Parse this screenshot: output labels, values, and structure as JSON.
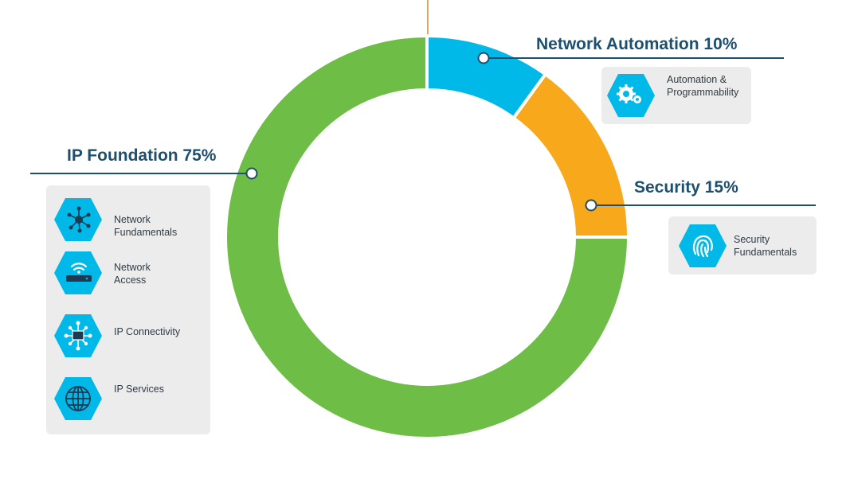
{
  "chart_data": {
    "type": "pie",
    "style": "donut",
    "slices": [
      {
        "label": "Network Automation 10%",
        "value": 10,
        "color": "#00b9e8"
      },
      {
        "label": "Security 15%",
        "value": 15,
        "color": "#f8a81b"
      },
      {
        "label": "IP Foundation 75%",
        "value": 75,
        "color": "#6dbd46"
      }
    ]
  },
  "colors": {
    "label_text": "#1d4f6e",
    "leader_line": "#1d4f6e",
    "icon_hex": "#00b9e8",
    "panel_bg": "#ececec",
    "top_marker": "#d98b2b"
  },
  "panels": {
    "automation": {
      "items": [
        {
          "icon": "gears-icon",
          "lines": [
            "Automation &",
            "Programmability"
          ]
        }
      ]
    },
    "security": {
      "items": [
        {
          "icon": "fingerprint-icon",
          "lines": [
            "Security",
            "Fundamentals"
          ]
        }
      ]
    },
    "foundation": {
      "items": [
        {
          "icon": "network-nodes-icon",
          "lines": [
            "Network",
            "Fundamentals"
          ]
        },
        {
          "icon": "wifi-router-icon",
          "lines": [
            "Network",
            "Access"
          ]
        },
        {
          "icon": "connectivity-icon",
          "lines": [
            "IP Connectivity"
          ]
        },
        {
          "icon": "globe-icon",
          "lines": [
            "IP Services"
          ]
        }
      ]
    }
  }
}
